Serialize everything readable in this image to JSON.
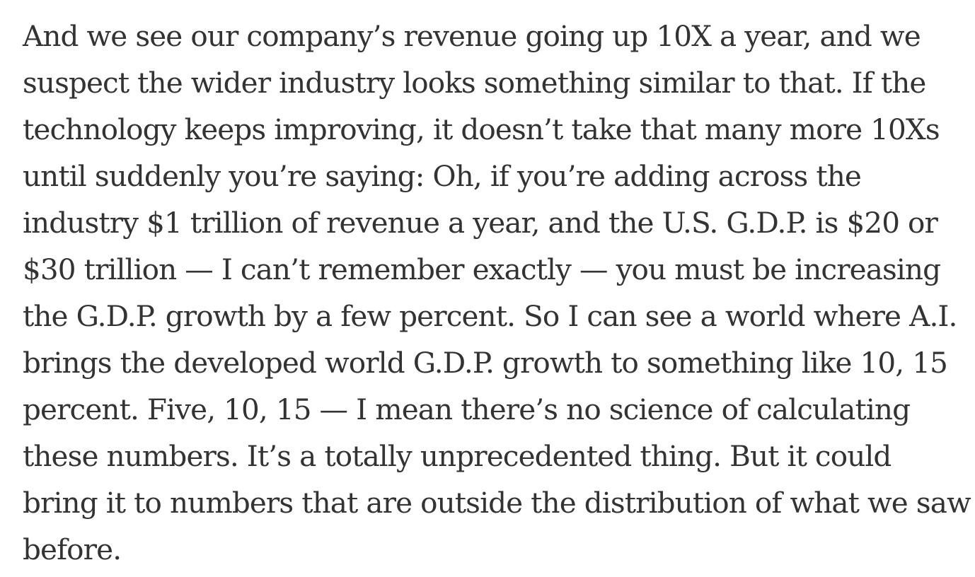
{
  "article": {
    "paragraph_lines": [
      "And we see our company’s revenue going up 10X a year, and we",
      "suspect the wider industry looks something similar to that. If the",
      "technology keeps improving, it doesn’t take that many more 10Xs",
      "until suddenly you’re saying: Oh, if you’re adding across the",
      "industry $1 trillion of revenue a year, and the U.S. G.D.P. is $20 or",
      "$30 trillion — I can’t remember exactly — you must be increasing",
      "the G.D.P. growth by a few percent. So I can see a world where A.I.",
      "brings the developed world G.D.P. growth to something like 10, 15",
      "percent. Five, 10, 15 — I mean there’s no science of calculating",
      "these numbers. It’s a totally unprecedented thing. But it could",
      "bring it to numbers that are outside the distribution of what we saw",
      "before."
    ]
  },
  "colors": {
    "text": "#333333",
    "background": "#ffffff"
  }
}
